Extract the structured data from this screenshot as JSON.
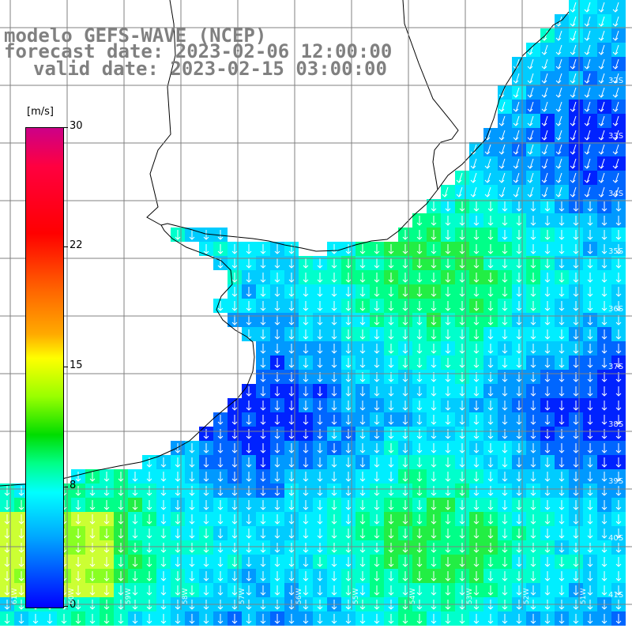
{
  "title": {
    "model": "modelo GEFS-WAVE (NCEP)",
    "forecast": "forecast date: 2023-02-06 12:00:00",
    "valid": "valid date: 2023-02-15 03:00:00"
  },
  "colorbar": {
    "unit": "[m/s]",
    "ticks": [
      "30",
      "22",
      "15",
      "8",
      "0"
    ],
    "max": 30
  },
  "lon_labels": [
    "61W",
    "60W",
    "59W",
    "58W",
    "57W",
    "56W",
    "55W",
    "54W",
    "53W",
    "52W",
    "51W"
  ],
  "lat_labels": [
    "32S",
    "33S",
    "34S",
    "35S",
    "36S",
    "37S",
    "38S",
    "39S",
    "40S",
    "41S"
  ],
  "colors": {
    "land": "#ffffff",
    "coast": "#000000",
    "grid": "#808080",
    "arrow": "#ffffff"
  }
}
